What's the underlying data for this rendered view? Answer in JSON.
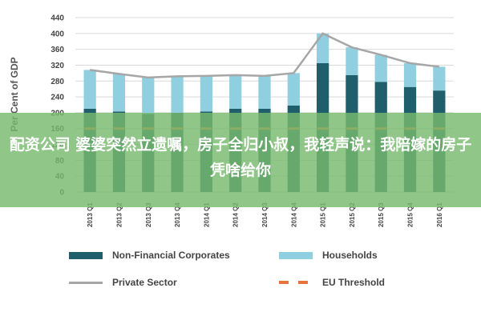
{
  "chart_data": {
    "type": "bar",
    "ylabel": "Per Cent of GDP",
    "ylim": [
      0,
      440
    ],
    "yticks": [
      0,
      40,
      80,
      120,
      160,
      200,
      240,
      280,
      320,
      360,
      400,
      440
    ],
    "grid": true,
    "categories": [
      "2013 Q1",
      "2013 Q2",
      "2013 Q3",
      "2013 Q4",
      "2014 Q1",
      "2014 Q2",
      "2014 Q3",
      "2014 Q4",
      "2015 Q1",
      "2015 Q2",
      "2015 Q3",
      "2015 Q4",
      "2016 Q1"
    ],
    "series": [
      {
        "name": "Non-Financial Corporates",
        "kind": "stacked-bar",
        "color": "#1f5f6b",
        "values": [
          210,
          203,
          197,
          200,
          203,
          210,
          210,
          218,
          325,
          295,
          278,
          265,
          256
        ]
      },
      {
        "name": "Households",
        "kind": "stacked-bar",
        "color": "#8fcfe0",
        "values": [
          98,
          95,
          92,
          92,
          90,
          85,
          83,
          82,
          75,
          70,
          68,
          60,
          60
        ]
      },
      {
        "name": "Private Sector",
        "kind": "line",
        "color": "#a6a6a6",
        "values": [
          308,
          298,
          289,
          292,
          293,
          295,
          293,
          300,
          400,
          365,
          346,
          325,
          316
        ]
      },
      {
        "name": "EU Threshold",
        "kind": "dashed-line",
        "color": "#e8743b",
        "values": [
          160,
          160,
          160,
          160,
          160,
          160,
          160,
          160,
          160,
          160,
          160,
          160,
          160
        ]
      }
    ],
    "legend_position": "bottom",
    "bar_fill_visible": "lower portion of bars appears green under overlay"
  },
  "overlay": {
    "text": "配资公司 婆婆突然立遗嘱，房子全归小叔，我轻声说：我陪嫁的房子凭啥给你"
  },
  "legend": {
    "items": [
      {
        "label": "Non-Financial Corporates",
        "style": "box",
        "color": "#1f5f6b"
      },
      {
        "label": "Households",
        "style": "box",
        "color": "#8fcfe0"
      },
      {
        "label": "Private Sector",
        "style": "line",
        "color": "#a6a6a6"
      },
      {
        "label": "EU Threshold",
        "style": "dash",
        "color": "#e8743b"
      }
    ]
  }
}
